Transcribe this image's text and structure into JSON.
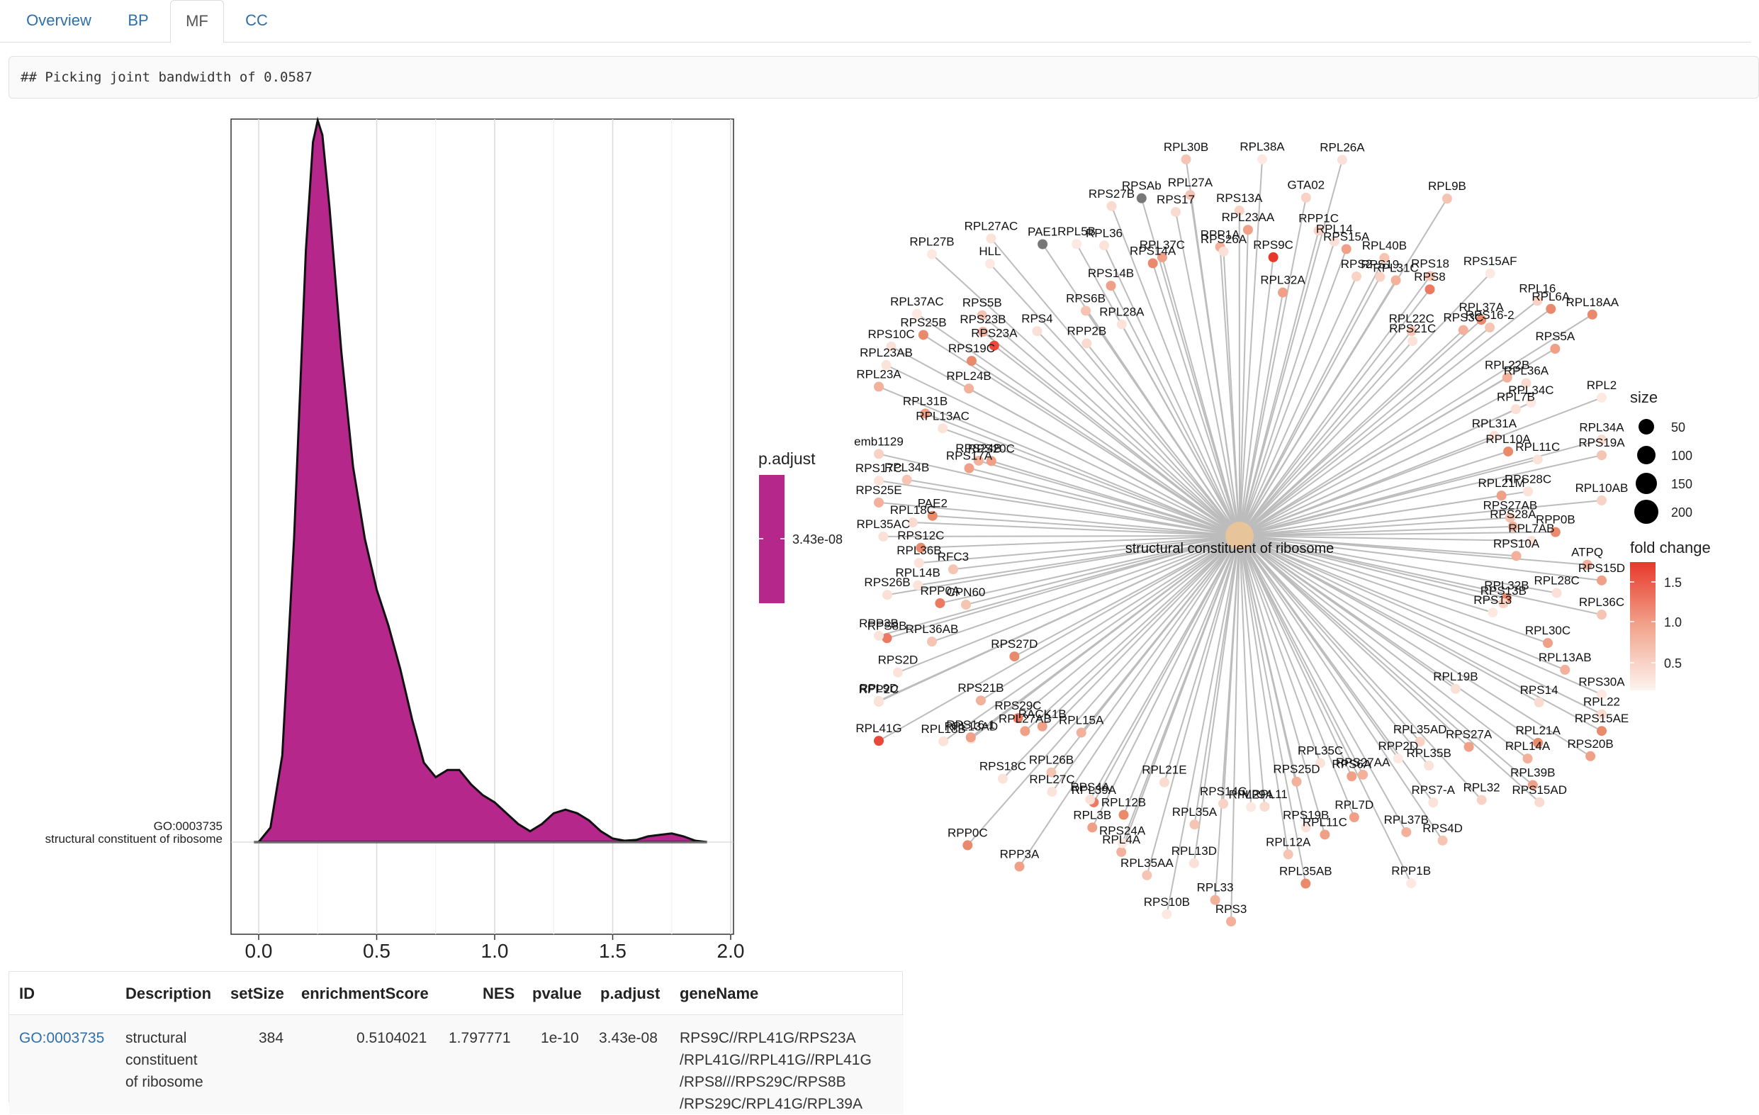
{
  "tabs": [
    "Overview",
    "BP",
    "MF",
    "CC"
  ],
  "active_tab": "MF",
  "console_output": "## Picking joint bandwidth of 0.0587",
  "ridge_plot": {
    "type": "area",
    "y_category_id": "GO:0003735",
    "y_category_label": "structural constituent of ribosome",
    "x_ticks": [
      "0.0",
      "0.5",
      "1.0",
      "1.5",
      "2.0"
    ],
    "xlim": [
      -0.12,
      2.02
    ],
    "fill_color": "#b5278a",
    "legend_title": "p.adjust",
    "legend_value": "3.43e-08",
    "density_x": [
      -0.02,
      0.0,
      0.05,
      0.1,
      0.15,
      0.2,
      0.23,
      0.25,
      0.27,
      0.3,
      0.35,
      0.4,
      0.45,
      0.5,
      0.55,
      0.6,
      0.65,
      0.7,
      0.75,
      0.8,
      0.85,
      0.9,
      0.95,
      1.0,
      1.05,
      1.1,
      1.15,
      1.2,
      1.25,
      1.3,
      1.35,
      1.4,
      1.45,
      1.5,
      1.55,
      1.6,
      1.65,
      1.7,
      1.75,
      1.8,
      1.85,
      1.9
    ],
    "density_y": [
      0.0,
      0.0,
      0.02,
      0.12,
      0.42,
      0.82,
      0.97,
      1.0,
      0.98,
      0.88,
      0.68,
      0.52,
      0.42,
      0.35,
      0.3,
      0.24,
      0.17,
      0.11,
      0.09,
      0.1,
      0.1,
      0.08,
      0.065,
      0.055,
      0.04,
      0.025,
      0.015,
      0.025,
      0.04,
      0.045,
      0.04,
      0.03,
      0.015,
      0.005,
      0.002,
      0.003,
      0.008,
      0.01,
      0.012,
      0.008,
      0.002,
      0.0
    ]
  },
  "network": {
    "center_label": "structural constituent of ribosome",
    "center_color": "#e7c49a",
    "size_legend_title": "size",
    "size_legend_values": [
      "50",
      "100",
      "150",
      "200"
    ],
    "color_legend_title": "fold change",
    "color_legend_ticks": [
      "1.5",
      "1.0",
      "0.5"
    ],
    "genes": [
      "RPS13A",
      "RPL23AA",
      "RPL38A",
      "RPS9C",
      "RPL32A",
      "GTA02",
      "RPP1C",
      "RPL26A",
      "RPL14",
      "RPS15A",
      "RPS2",
      "RPL40B",
      "RPS19",
      "RPL31C",
      "RPL9B",
      "RPS18",
      "RPS8",
      "RPL22C",
      "RPS21C",
      "RPS15AF",
      "RPS3C",
      "RPL37A",
      "RPS16-2",
      "RPL16",
      "RPL6A",
      "RPL18AA",
      "RPS5A",
      "RPL22B",
      "RPL36A",
      "RPL7B",
      "RPL34C",
      "RPL31A",
      "RPL2",
      "RPL10A",
      "RPL11C",
      "RPL34A",
      "RPS19A",
      "RPS28C",
      "RPL21M",
      "RPL10AB",
      "RPS27AB",
      "RPS28A",
      "RPP0B",
      "RPL7AB",
      "RPS10A",
      "ATPQ",
      "RPS15D",
      "RPL28C",
      "RPL36C",
      "RPL32B",
      "RPS13B",
      "RPS13",
      "RPL30C",
      "RPL13AB",
      "RPS30A",
      "RPL22",
      "RPS15AE",
      "RPS14",
      "RPS20B",
      "RPL21A",
      "RPL19B",
      "RPL14A",
      "RPL39B",
      "RPS15AD",
      "RPS27A",
      "RPL32",
      "RPL35AD",
      "RPL35B",
      "RPS7-A",
      "RPP2D",
      "RPS4D",
      "RPL37B",
      "RPS27AA",
      "RPP1B",
      "RPS6A",
      "RPL7D",
      "RPL35C",
      "RPL11C",
      "RPS25D",
      "RPS19B",
      "RPL35AB",
      "RPL12A",
      "MRPL11",
      "RPL29A",
      "RPS3",
      "RPL33",
      "RPS14C",
      "RPL13D",
      "RPL35A",
      "RPS10B",
      "RPL35AA",
      "RPL21E",
      "RPL4A",
      "RPS24A",
      "RPL12B",
      "RPL3B",
      "RPL39A",
      "RPS4A",
      "RPP3A",
      "RPL27C",
      "RPL26B",
      "RPL15A",
      "RPP0C",
      "RPS18C",
      "RACK1B",
      "RPL27AB",
      "RPS29C",
      "RPL13AD",
      "RPS16-1",
      "RPL18B",
      "RPS21B",
      "RPL41G",
      "RPS27D",
      "RPP2C",
      "RPL9D",
      "RPS2D",
      "RPL36AB",
      "RPS8B",
      "RPP3B",
      "CPN60",
      "RPP0A",
      "RPS26B",
      "RPL14B",
      "RFC3",
      "RPL36B",
      "RPS12C",
      "RPL35AC",
      "RPL18C",
      "PAE2",
      "RPS25E",
      "RPS17C",
      "RPL34B",
      "emb1129",
      "RPS17A",
      "RPS24B",
      "RPS20C",
      "RPL13AC",
      "RPL31B",
      "RPL23A",
      "RPL23AB",
      "RPS10C",
      "RPL24B",
      "RPS25B",
      "RPS19C",
      "RPL37AC",
      "RPS23A",
      "RPS23B",
      "RPS5B",
      "RPL27B",
      "RPS4",
      "HLL",
      "RPL27AC",
      "RPP2B",
      "PAE1",
      "RPS6B",
      "RPL28A",
      "RPL5B",
      "RPS14B",
      "RPL36",
      "RPS27B",
      "RPS14A",
      "RPSAb",
      "RPL37C",
      "RPS17",
      "RPL30B",
      "RPL27A",
      "RPP1A",
      "RPS26A"
    ]
  },
  "table": {
    "headers": [
      "ID",
      "Description",
      "setSize",
      "enrichmentScore",
      "NES",
      "pvalue",
      "p.adjust",
      "geneName"
    ],
    "row": {
      "id": "GO:0003735",
      "description_lines": [
        "structural",
        "constituent",
        "of ribosome"
      ],
      "setSize": "384",
      "enrichmentScore": "0.5104021",
      "NES": "1.797771",
      "pvalue": "1e-10",
      "p_adjust": "3.43e-08",
      "gene_lines": [
        "RPS9C//RPL41G/RPS23A",
        "/RPL41G//RPL41G//RPL41G",
        "/RPS8///RPS29C/RPS8B",
        "/RPS29C/RPL41G/RPL39A"
      ]
    }
  }
}
